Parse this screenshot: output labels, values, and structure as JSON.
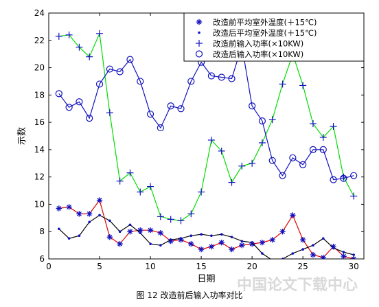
{
  "figure": {
    "caption": "图 12 改造前后输入功率对比",
    "watermark": "中国论文下载中心"
  },
  "chart_data": {
    "type": "line",
    "xlabel": "日期",
    "ylabel": "示数",
    "xlim": [
      0,
      31
    ],
    "ylim": [
      6,
      24
    ],
    "xticks": [
      0,
      5,
      10,
      15,
      20,
      25,
      30
    ],
    "yticks": [
      6,
      8,
      10,
      12,
      14,
      16,
      18,
      20,
      22,
      24
    ],
    "grid": false,
    "legend_position": "top-right",
    "x": [
      1,
      2,
      3,
      4,
      5,
      6,
      7,
      8,
      9,
      10,
      11,
      12,
      13,
      14,
      15,
      16,
      17,
      18,
      19,
      20,
      21,
      22,
      23,
      24,
      25,
      26,
      27,
      28,
      29,
      30
    ],
    "series": [
      {
        "name": "改造前平均室外温度(＋15℃)",
        "marker": "star",
        "line_color": "#e00000",
        "marker_color": "#1010c0",
        "values": [
          9.7,
          9.8,
          9.3,
          9.3,
          10.3,
          7.6,
          7.1,
          8.0,
          8.1,
          8.1,
          7.9,
          7.3,
          7.4,
          7.1,
          6.7,
          6.9,
          7.2,
          6.7,
          7.0,
          7.1,
          7.2,
          7.4,
          8.0,
          9.2,
          7.4,
          6.3,
          6.1,
          6.9,
          6.2,
          6.0
        ]
      },
      {
        "name": "改造后平均室外温度(＋15℃)",
        "marker": "dot",
        "line_color": "#000000",
        "marker_color": "#1010c0",
        "values": [
          8.2,
          7.5,
          7.7,
          8.7,
          9.2,
          8.8,
          8.0,
          8.5,
          7.9,
          7.1,
          7.0,
          7.4,
          7.5,
          7.7,
          7.8,
          7.7,
          7.8,
          7.6,
          7.3,
          7.2,
          6.4,
          5.9,
          6.0,
          6.4,
          6.7,
          7.0,
          7.5,
          6.8,
          6.5,
          6.3
        ]
      },
      {
        "name": "改造前输入功率(×10KW)",
        "marker": "plus",
        "line_color": "#00dd00",
        "marker_color": "#1010c0",
        "values": [
          22.3,
          22.4,
          21.5,
          20.8,
          22.5,
          16.7,
          11.7,
          12.3,
          10.9,
          11.3,
          9.1,
          8.9,
          8.8,
          9.3,
          10.9,
          14.7,
          13.9,
          11.6,
          12.8,
          13.0,
          14.5,
          16.2,
          18.8,
          21.0,
          18.7,
          15.9,
          14.9,
          15.7,
          12.0,
          10.6
        ]
      },
      {
        "name": "改造后输入功率(×10KW)",
        "marker": "circle",
        "line_color": "#1010c0",
        "marker_color": "#1010c0",
        "values": [
          18.1,
          17.1,
          17.5,
          16.3,
          18.8,
          19.9,
          19.7,
          20.6,
          19.0,
          16.6,
          15.6,
          17.2,
          17.0,
          19.0,
          20.4,
          19.4,
          19.3,
          19.2,
          21.6,
          17.2,
          16.1,
          13.2,
          12.1,
          13.4,
          12.9,
          14.0,
          14.0,
          11.8,
          11.9,
          12.1
        ]
      }
    ]
  }
}
